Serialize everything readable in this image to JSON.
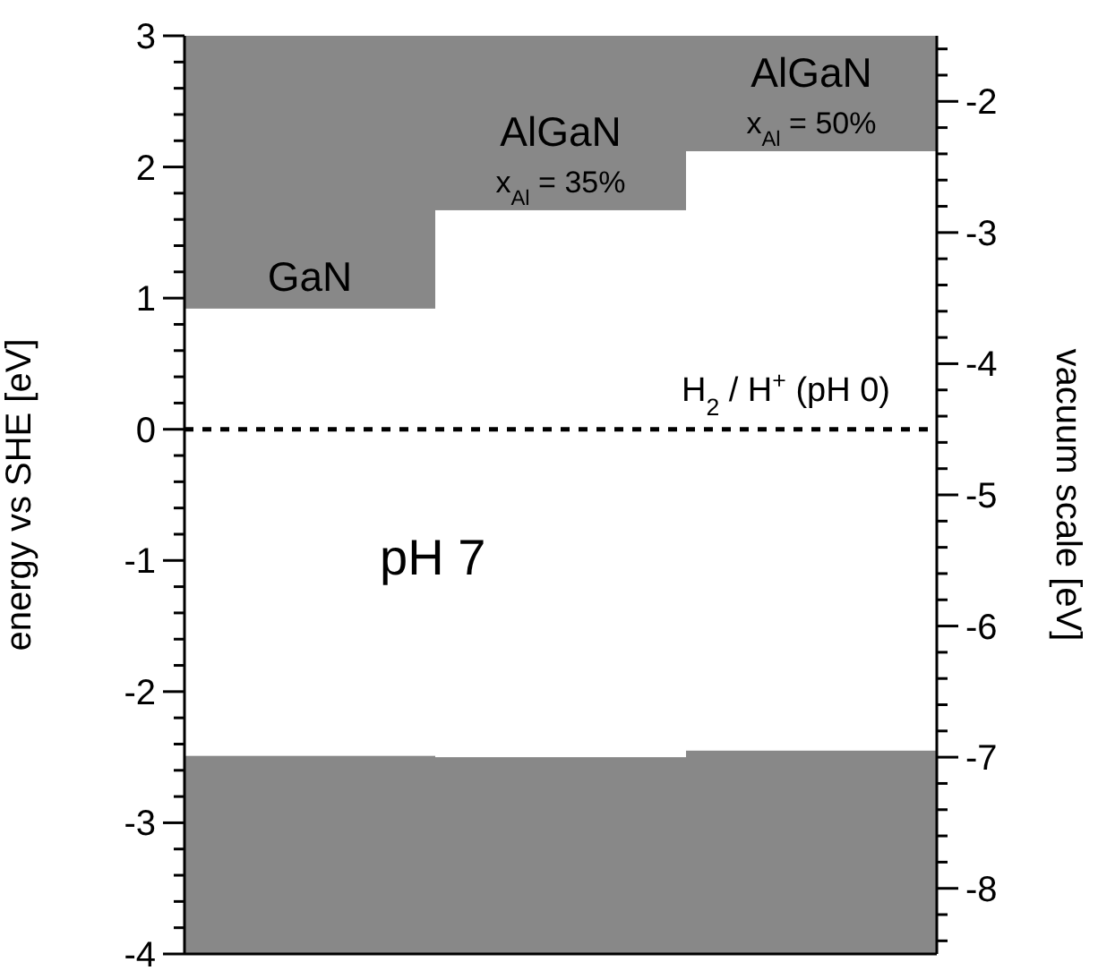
{
  "chart_data": {
    "type": "bar",
    "categories": [
      "GaN",
      "AlGaN",
      "AlGaN"
    ],
    "series": [
      {
        "color": "#888888",
        "base": [
          0.92,
          1.67,
          2.12
        ],
        "values": [
          2.08,
          1.33,
          0.88
        ]
      },
      {
        "color": "#888888",
        "base": [
          -4,
          -4,
          -4
        ],
        "values": [
          1.51,
          1.5,
          1.55
        ]
      }
    ],
    "ylabel": "energy vs SHE [eV]",
    "y2label": "vacuum scale [eV]",
    "ylim": [
      -4,
      3
    ],
    "yticks": [
      -4,
      {
        "value": -3.8,
        "label": null
      },
      {
        "value": -3.6,
        "label": null
      },
      {
        "value": -3.4,
        "label": null
      },
      {
        "value": -3.2,
        "label": null
      },
      -3,
      {
        "value": -2.8,
        "label": null
      },
      {
        "value": -2.6,
        "label": null
      },
      {
        "value": -2.4,
        "label": null
      },
      {
        "value": -2.2,
        "label": null
      },
      -2,
      {
        "value": -1.8,
        "label": null
      },
      {
        "value": -1.6,
        "label": null
      },
      {
        "value": -1.4,
        "label": null
      },
      {
        "value": -1.2,
        "label": null
      },
      -1,
      {
        "value": -0.8,
        "label": null
      },
      {
        "value": -0.6,
        "label": null
      },
      {
        "value": -0.4,
        "label": null
      },
      {
        "value": -0.2,
        "label": null
      },
      0,
      {
        "value": 0.2,
        "label": null
      },
      {
        "value": 0.4,
        "label": null
      },
      {
        "value": 0.6,
        "label": null
      },
      {
        "value": 0.8,
        "label": null
      },
      1,
      {
        "value": 1.2,
        "label": null
      },
      {
        "value": 1.4,
        "label": null
      },
      {
        "value": 1.6,
        "label": null
      },
      {
        "value": 1.8,
        "label": null
      },
      2,
      {
        "value": 2.2,
        "label": null
      },
      {
        "value": 2.4,
        "label": null
      },
      {
        "value": 2.6,
        "label": null
      },
      {
        "value": 2.8,
        "label": null
      },
      3
    ],
    "y2lim": [
      -8.5,
      -1.5
    ],
    "y2ticks": [
      {
        "value": -8.4,
        "label": null
      },
      {
        "value": -8.2,
        "label": null
      },
      -8,
      {
        "value": -7.8,
        "label": null
      },
      {
        "value": -7.6,
        "label": null
      },
      {
        "value": -7.4,
        "label": null
      },
      {
        "value": -7.2,
        "label": null
      },
      -7,
      {
        "value": -6.8,
        "label": null
      },
      {
        "value": -6.6,
        "label": null
      },
      {
        "value": -6.4,
        "label": null
      },
      {
        "value": -6.2,
        "label": null
      },
      -6,
      {
        "value": -5.8,
        "label": null
      },
      {
        "value": -5.6,
        "label": null
      },
      {
        "value": -5.4,
        "label": null
      },
      {
        "value": -5.2,
        "label": null
      },
      -5,
      {
        "value": -4.8,
        "label": null
      },
      {
        "value": -4.6,
        "label": null
      },
      {
        "value": -4.4,
        "label": null
      },
      {
        "value": -4.2,
        "label": null
      },
      -4,
      {
        "value": -3.8,
        "label": null
      },
      {
        "value": -3.6,
        "label": null
      },
      {
        "value": -3.4,
        "label": null
      },
      {
        "value": -3.2,
        "label": null
      },
      -3,
      {
        "value": -2.8,
        "label": null
      },
      {
        "value": -2.6,
        "label": null
      },
      {
        "value": -2.4,
        "label": null
      },
      {
        "value": -2.2,
        "label": null
      },
      -2,
      {
        "value": -1.8,
        "label": null
      },
      {
        "value": -1.6,
        "label": null
      }
    ],
    "ref_lines": [
      {
        "axis": "y",
        "value": 0,
        "label": "H$_{2}$ / H$^{+}$ (pH 0)",
        "color": "#000000",
        "line_style": "dashed"
      }
    ],
    "annotations": [
      "pH 7",
      "x$_{Al}$ = 35%",
      "x$_{Al}$ = 50%"
    ]
  }
}
